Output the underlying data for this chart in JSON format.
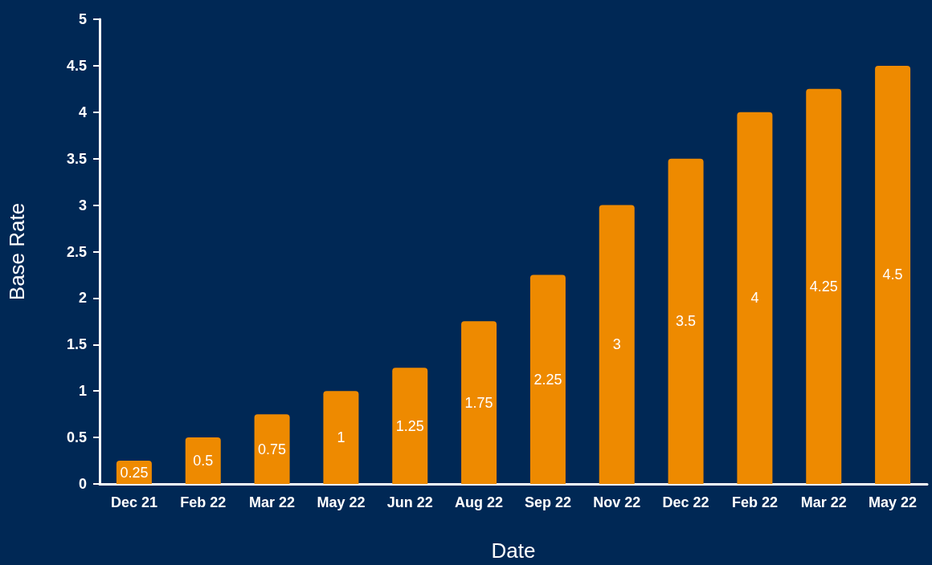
{
  "chart_data": {
    "type": "bar",
    "xlabel": "Date",
    "ylabel": "Base Rate",
    "categories": [
      "Dec 21",
      "Feb 22",
      "Mar 22",
      "May 22",
      "Jun 22",
      "Aug 22",
      "Sep 22",
      "Nov 22",
      "Dec 22",
      "Feb 22",
      "Mar 22",
      "May 22"
    ],
    "values": [
      0.25,
      0.5,
      0.75,
      1,
      1.25,
      1.75,
      2.25,
      3,
      3.5,
      4,
      4.25,
      4.5
    ],
    "color": "#ee8a00",
    "ylim": [
      0,
      5
    ],
    "yticks": [
      0,
      0.5,
      1,
      1.5,
      2,
      2.5,
      3,
      3.5,
      4,
      4.5,
      5
    ],
    "grid": false,
    "data_labels": true
  }
}
